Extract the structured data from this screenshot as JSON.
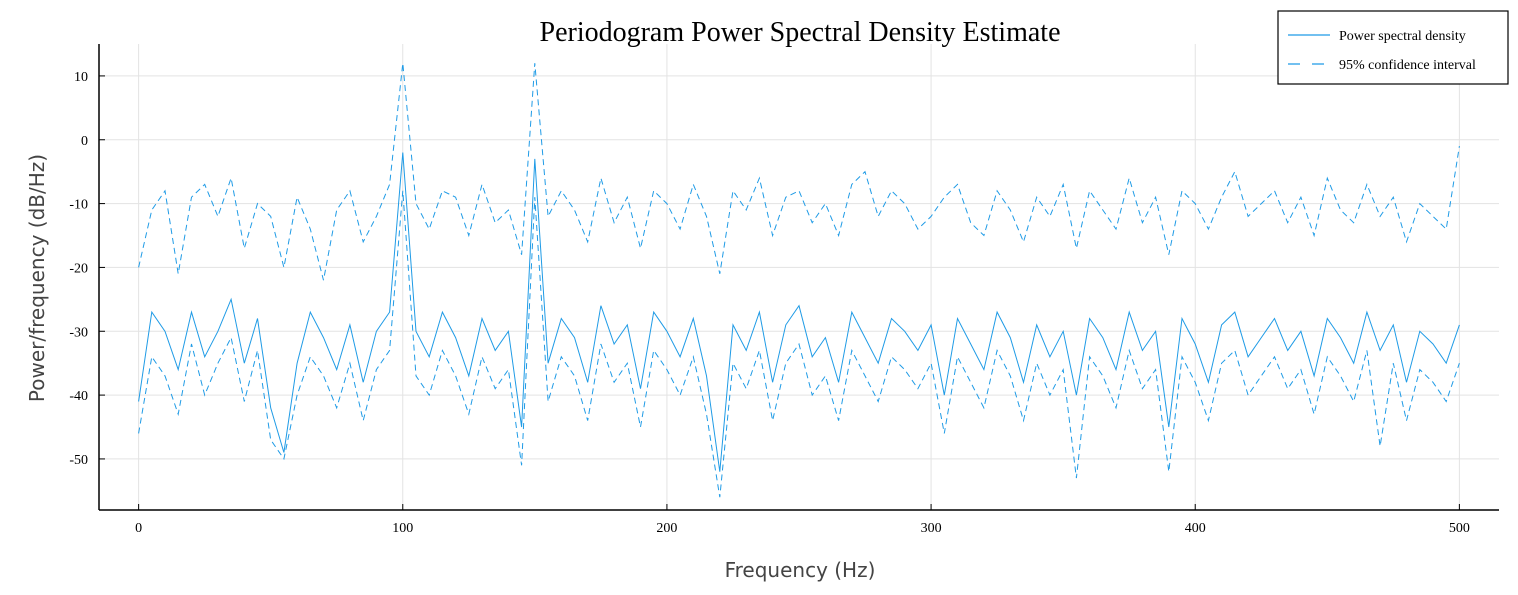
{
  "chart_data": {
    "type": "line",
    "title": "Periodogram Power Spectral Density Estimate",
    "xlabel": "Frequency (Hz)",
    "ylabel": "Power/frequency (dB/Hz)",
    "xlim": [
      -15,
      515
    ],
    "ylim": [
      -58,
      15
    ],
    "xticks": [
      0,
      100,
      200,
      300,
      400,
      500
    ],
    "yticks": [
      -50,
      -40,
      -30,
      -20,
      -10,
      0,
      10
    ],
    "grid": true,
    "legend_position": "top-right",
    "colors": {
      "series": "#1f9be6",
      "axis": "#000000",
      "grid": "#e3e3e3"
    },
    "series": [
      {
        "name": "Power spectral density",
        "style": "solid",
        "x": [
          0,
          5,
          10,
          15,
          20,
          25,
          30,
          35,
          40,
          45,
          50,
          55,
          60,
          65,
          70,
          75,
          80,
          85,
          90,
          95,
          100,
          105,
          110,
          115,
          120,
          125,
          130,
          135,
          140,
          145,
          150,
          155,
          160,
          165,
          170,
          175,
          180,
          185,
          190,
          195,
          200,
          205,
          210,
          215,
          220,
          225,
          230,
          235,
          240,
          245,
          250,
          255,
          260,
          265,
          270,
          275,
          280,
          285,
          290,
          295,
          300,
          305,
          310,
          315,
          320,
          325,
          330,
          335,
          340,
          345,
          350,
          355,
          360,
          365,
          370,
          375,
          380,
          385,
          390,
          395,
          400,
          405,
          410,
          415,
          420,
          425,
          430,
          435,
          440,
          445,
          450,
          455,
          460,
          465,
          470,
          475,
          480,
          485,
          490,
          495,
          500
        ],
        "values": [
          -41,
          -27,
          -30,
          -36,
          -27,
          -34,
          -30,
          -25,
          -35,
          -28,
          -42,
          -49,
          -35,
          -27,
          -31,
          -36,
          -29,
          -38,
          -30,
          -27,
          -2,
          -30,
          -34,
          -27,
          -31,
          -37,
          -28,
          -33,
          -30,
          -45,
          -3,
          -35,
          -28,
          -31,
          -38,
          -26,
          -32,
          -29,
          -39,
          -27,
          -30,
          -34,
          -28,
          -37,
          -52,
          -29,
          -33,
          -27,
          -38,
          -29,
          -26,
          -34,
          -31,
          -38,
          -27,
          -31,
          -35,
          -28,
          -30,
          -33,
          -29,
          -40,
          -28,
          -32,
          -36,
          -27,
          -31,
          -38,
          -29,
          -34,
          -30,
          -40,
          -28,
          -31,
          -36,
          -27,
          -33,
          -30,
          -45,
          -28,
          -32,
          -38,
          -29,
          -27,
          -34,
          -31,
          -28,
          -33,
          -30,
          -37,
          -28,
          -31,
          -35,
          -27,
          -33,
          -29,
          -38,
          -30,
          -32,
          -35,
          -29
        ]
      },
      {
        "name": "95% confidence interval",
        "style": "dashed",
        "x": [
          0,
          5,
          10,
          15,
          20,
          25,
          30,
          35,
          40,
          45,
          50,
          55,
          60,
          65,
          70,
          75,
          80,
          85,
          90,
          95,
          100,
          105,
          110,
          115,
          120,
          125,
          130,
          135,
          140,
          145,
          150,
          155,
          160,
          165,
          170,
          175,
          180,
          185,
          190,
          195,
          200,
          205,
          210,
          215,
          220,
          225,
          230,
          235,
          240,
          245,
          250,
          255,
          260,
          265,
          270,
          275,
          280,
          285,
          290,
          295,
          300,
          305,
          310,
          315,
          320,
          325,
          330,
          335,
          340,
          345,
          350,
          355,
          360,
          365,
          370,
          375,
          380,
          385,
          390,
          395,
          400,
          405,
          410,
          415,
          420,
          425,
          430,
          435,
          440,
          445,
          450,
          455,
          460,
          465,
          470,
          475,
          480,
          485,
          490,
          495,
          500
        ],
        "values": [
          -20,
          -11,
          -8,
          -21,
          -9,
          -7,
          -12,
          -6,
          -17,
          -10,
          -12,
          -20,
          -9,
          -14,
          -22,
          -11,
          -8,
          -16,
          -12,
          -7,
          12,
          -10,
          -14,
          -8,
          -9,
          -15,
          -7,
          -13,
          -11,
          -18,
          12,
          -12,
          -8,
          -11,
          -16,
          -6,
          -13,
          -9,
          -17,
          -8,
          -10,
          -14,
          -7,
          -12,
          -21,
          -8,
          -11,
          -6,
          -15,
          -9,
          -8,
          -13,
          -10,
          -15,
          -7,
          -5,
          -12,
          -8,
          -10,
          -14,
          -12,
          -9,
          -7,
          -13,
          -15,
          -8,
          -11,
          -16,
          -9,
          -12,
          -7,
          -17,
          -8,
          -11,
          -14,
          -6,
          -13,
          -9,
          -18,
          -8,
          -10,
          -14,
          -9,
          -5,
          -12,
          -10,
          -8,
          -13,
          -9,
          -15,
          -6,
          -11,
          -13,
          -7,
          -12,
          -9,
          -16,
          -10,
          -12,
          -14,
          -1
        ]
      },
      {
        "name": "",
        "style": "dashed",
        "x": [
          0,
          5,
          10,
          15,
          20,
          25,
          30,
          35,
          40,
          45,
          50,
          55,
          60,
          65,
          70,
          75,
          80,
          85,
          90,
          95,
          100,
          105,
          110,
          115,
          120,
          125,
          130,
          135,
          140,
          145,
          150,
          155,
          160,
          165,
          170,
          175,
          180,
          185,
          190,
          195,
          200,
          205,
          210,
          215,
          220,
          225,
          230,
          235,
          240,
          245,
          250,
          255,
          260,
          265,
          270,
          275,
          280,
          285,
          290,
          295,
          300,
          305,
          310,
          315,
          320,
          325,
          330,
          335,
          340,
          345,
          350,
          355,
          360,
          365,
          370,
          375,
          380,
          385,
          390,
          395,
          400,
          405,
          410,
          415,
          420,
          425,
          430,
          435,
          440,
          445,
          450,
          455,
          460,
          465,
          470,
          475,
          480,
          485,
          490,
          495,
          500
        ],
        "values": [
          -46,
          -34,
          -37,
          -43,
          -32,
          -40,
          -35,
          -31,
          -41,
          -33,
          -47,
          -50,
          -40,
          -34,
          -37,
          -42,
          -35,
          -44,
          -36,
          -33,
          -8,
          -37,
          -40,
          -33,
          -37,
          -43,
          -34,
          -39,
          -36,
          -51,
          -9,
          -41,
          -34,
          -37,
          -44,
          -32,
          -38,
          -35,
          -45,
          -33,
          -36,
          -40,
          -34,
          -43,
          -56,
          -35,
          -39,
          -33,
          -44,
          -35,
          -32,
          -40,
          -37,
          -44,
          -33,
          -37,
          -41,
          -34,
          -36,
          -39,
          -35,
          -46,
          -34,
          -38,
          -42,
          -33,
          -37,
          -44,
          -35,
          -40,
          -36,
          -53,
          -34,
          -37,
          -42,
          -33,
          -39,
          -36,
          -52,
          -34,
          -38,
          -44,
          -35,
          -33,
          -40,
          -37,
          -34,
          -39,
          -36,
          -43,
          -34,
          -37,
          -41,
          -33,
          -48,
          -35,
          -44,
          -36,
          -38,
          -41,
          -35
        ]
      }
    ]
  }
}
